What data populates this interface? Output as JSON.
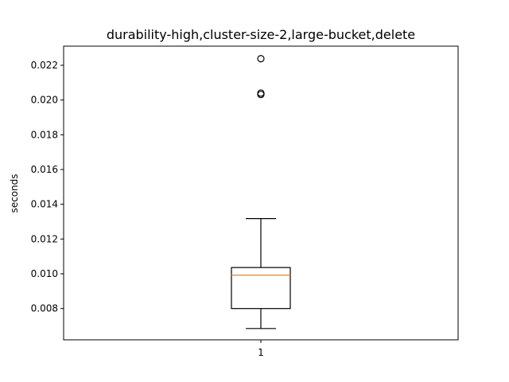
{
  "chart_data": {
    "type": "box",
    "title": "durability-high,cluster-size-2,large-bucket,delete",
    "xlabel": "",
    "ylabel": "seconds",
    "ylim": [
      0.0062,
      0.0231
    ],
    "y_ticks": [
      "0.008",
      "0.010",
      "0.012",
      "0.014",
      "0.016",
      "0.018",
      "0.020",
      "0.022"
    ],
    "categories": [
      "1"
    ],
    "boxes": [
      {
        "category": "1",
        "whisker_low": 0.00685,
        "q1": 0.008,
        "median": 0.00992,
        "q3": 0.01036,
        "whisker_high": 0.01318,
        "outliers": [
          0.02238,
          0.0204,
          0.02032
        ]
      }
    ],
    "colors": {
      "box": "#000000",
      "median": "#ff7f0e",
      "background": "#ffffff"
    },
    "grid": false
  }
}
